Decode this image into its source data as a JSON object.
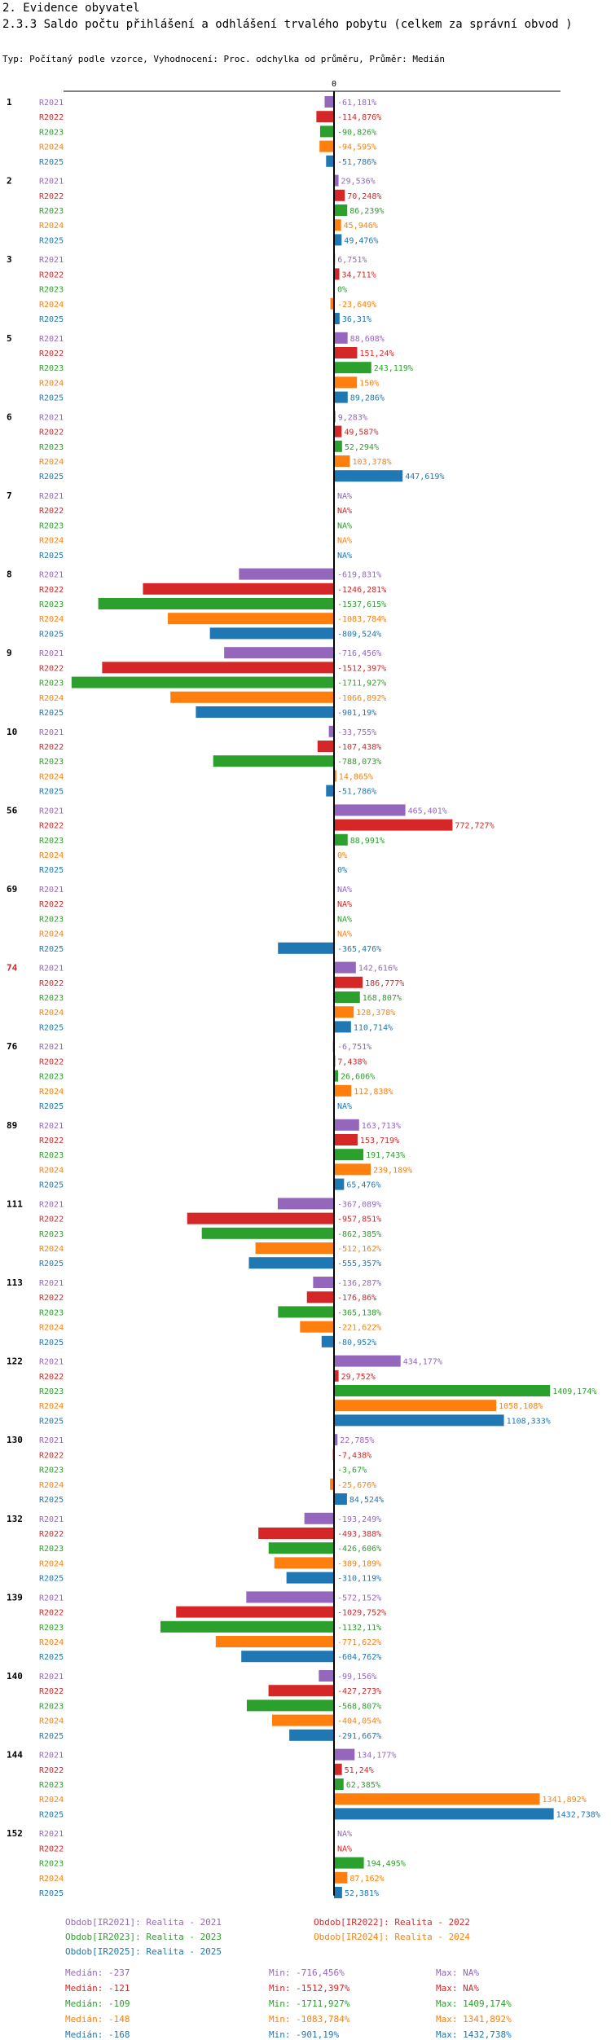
{
  "header": {
    "section": "2. Evidence obyvatel",
    "title": "2.3.3 Saldo počtu přihlášení a odhlášení trvalého pobytu (celkem za správní obvod )",
    "subtitle": "Typ: Počítaný podle vzorce, Vyhodnocení: Proc. odchylka od průměru, Průměr: Medián"
  },
  "colors": {
    "R2021": "#9467bd",
    "R2022": "#d62728",
    "R2023": "#2ca02c",
    "R2024": "#ff7f0e",
    "R2025": "#1f77b4"
  },
  "chart_data": {
    "type": "bar",
    "orientation": "horizontal",
    "axis_zero_label": "0",
    "series_names": [
      "R2021",
      "R2022",
      "R2023",
      "R2024",
      "R2025"
    ],
    "groups": [
      {
        "label": "1",
        "highlight": false,
        "values": [
          -61.181,
          -114.876,
          -90.826,
          -94.595,
          -51.786
        ],
        "labels": [
          "-61,181%",
          "-114,876%",
          "-90,826%",
          "-94,595%",
          "-51,786%"
        ]
      },
      {
        "label": "2",
        "highlight": false,
        "values": [
          29.536,
          70.248,
          86.239,
          45.946,
          49.476
        ],
        "labels": [
          "29,536%",
          "70,248%",
          "86,239%",
          "45,946%",
          "49,476%"
        ]
      },
      {
        "label": "3",
        "highlight": false,
        "values": [
          6.751,
          34.711,
          0,
          -23.649,
          36.31
        ],
        "labels": [
          "6,751%",
          "34,711%",
          "0%",
          "-23,649%",
          "36,31%"
        ]
      },
      {
        "label": "5",
        "highlight": false,
        "values": [
          88.608,
          151.24,
          243.119,
          150,
          89.286
        ],
        "labels": [
          "88,608%",
          "151,24%",
          "243,119%",
          "150%",
          "89,286%"
        ]
      },
      {
        "label": "6",
        "highlight": false,
        "values": [
          9.283,
          49.587,
          52.294,
          103.378,
          447.619
        ],
        "labels": [
          "9,283%",
          "49,587%",
          "52,294%",
          "103,378%",
          "447,619%"
        ]
      },
      {
        "label": "7",
        "highlight": false,
        "values": [
          null,
          null,
          null,
          null,
          null
        ],
        "labels": [
          "NA%",
          "NA%",
          "NA%",
          "NA%",
          "NA%"
        ]
      },
      {
        "label": "8",
        "highlight": false,
        "values": [
          -619.831,
          -1246.281,
          -1537.615,
          -1083.784,
          -809.524
        ],
        "labels": [
          "-619,831%",
          "-1246,281%",
          "-1537,615%",
          "-1083,784%",
          "-809,524%"
        ]
      },
      {
        "label": "9",
        "highlight": false,
        "values": [
          -716.456,
          -1512.397,
          -1711.927,
          -1066.892,
          -901.19
        ],
        "labels": [
          "-716,456%",
          "-1512,397%",
          "-1711,927%",
          "-1066,892%",
          "-901,19%"
        ]
      },
      {
        "label": "10",
        "highlight": false,
        "values": [
          -33.755,
          -107.438,
          -788.073,
          14.865,
          -51.786
        ],
        "labels": [
          "-33,755%",
          "-107,438%",
          "-788,073%",
          "14,865%",
          "-51,786%"
        ]
      },
      {
        "label": "56",
        "highlight": false,
        "values": [
          465.401,
          772.727,
          88.991,
          0,
          0
        ],
        "labels": [
          "465,401%",
          "772,727%",
          "88,991%",
          "0%",
          "0%"
        ]
      },
      {
        "label": "69",
        "highlight": false,
        "values": [
          null,
          null,
          null,
          null,
          -365.476
        ],
        "labels": [
          "NA%",
          "NA%",
          "NA%",
          "NA%",
          "-365,476%"
        ]
      },
      {
        "label": "74",
        "highlight": true,
        "values": [
          142.616,
          186.777,
          168.807,
          128.378,
          110.714
        ],
        "labels": [
          "142,616%",
          "186,777%",
          "168,807%",
          "128,378%",
          "110,714%"
        ]
      },
      {
        "label": "76",
        "highlight": false,
        "values": [
          -6.751,
          7.438,
          26.606,
          112.838,
          null
        ],
        "labels": [
          "-6,751%",
          "7,438%",
          "26,606%",
          "112,838%",
          "NA%"
        ]
      },
      {
        "label": "89",
        "highlight": false,
        "values": [
          163.713,
          153.719,
          191.743,
          239.189,
          65.476
        ],
        "labels": [
          "163,713%",
          "153,719%",
          "191,743%",
          "239,189%",
          "65,476%"
        ]
      },
      {
        "label": "111",
        "highlight": false,
        "values": [
          -367.089,
          -957.851,
          -862.385,
          -512.162,
          -555.357
        ],
        "labels": [
          "-367,089%",
          "-957,851%",
          "-862,385%",
          "-512,162%",
          "-555,357%"
        ]
      },
      {
        "label": "113",
        "highlight": false,
        "values": [
          -136.287,
          -176.86,
          -365.138,
          -221.622,
          -80.952
        ],
        "labels": [
          "-136,287%",
          "-176,86%",
          "-365,138%",
          "-221,622%",
          "-80,952%"
        ]
      },
      {
        "label": "122",
        "highlight": false,
        "values": [
          434.177,
          29.752,
          1409.174,
          1058.108,
          1108.333
        ],
        "labels": [
          "434,177%",
          "29,752%",
          "1409,174%",
          "1058,108%",
          "1108,333%"
        ]
      },
      {
        "label": "130",
        "highlight": false,
        "values": [
          22.785,
          -7.438,
          -3.67,
          -25.676,
          84.524
        ],
        "labels": [
          "22,785%",
          "-7,438%",
          "-3,67%",
          "-25,676%",
          "84,524%"
        ]
      },
      {
        "label": "132",
        "highlight": false,
        "values": [
          -193.249,
          -493.388,
          -426.606,
          -389.189,
          -310.119
        ],
        "labels": [
          "-193,249%",
          "-493,388%",
          "-426,606%",
          "-389,189%",
          "-310,119%"
        ]
      },
      {
        "label": "139",
        "highlight": false,
        "values": [
          -572.152,
          -1029.752,
          -1132.11,
          -771.622,
          -604.762
        ],
        "labels": [
          "-572,152%",
          "-1029,752%",
          "-1132,11%",
          "-771,622%",
          "-604,762%"
        ]
      },
      {
        "label": "140",
        "highlight": false,
        "values": [
          -99.156,
          -427.273,
          -568.807,
          -404.054,
          -291.667
        ],
        "labels": [
          "-99,156%",
          "-427,273%",
          "-568,807%",
          "-404,054%",
          "-291,667%"
        ]
      },
      {
        "label": "144",
        "highlight": false,
        "values": [
          134.177,
          51.24,
          62.385,
          1341.892,
          1432.738
        ],
        "labels": [
          "134,177%",
          "51,24%",
          "62,385%",
          "1341,892%",
          "1432,738%"
        ]
      },
      {
        "label": "152",
        "highlight": false,
        "values": [
          null,
          null,
          194.495,
          87.162,
          52.381
        ],
        "labels": [
          "NA%",
          "NA%",
          "194,495%",
          "87,162%",
          "52,381%"
        ]
      }
    ],
    "legend": [
      {
        "key": "R2021",
        "text": "Obdob[IR2021]: Realita - 2021"
      },
      {
        "key": "R2022",
        "text": "Obdob[IR2022]: Realita - 2022"
      },
      {
        "key": "R2023",
        "text": "Obdob[IR2023]: Realita - 2023"
      },
      {
        "key": "R2024",
        "text": "Obdob[IR2024]: Realita - 2024"
      },
      {
        "key": "R2025",
        "text": "Obdob[IR2025]: Realita - 2025"
      }
    ],
    "stats": [
      {
        "key": "R2021",
        "median": "Medián: -237",
        "min": "Min: -716,456%",
        "max": "Max: NA%"
      },
      {
        "key": "R2022",
        "median": "Medián: -121",
        "min": "Min: -1512,397%",
        "max": "Max: NA%"
      },
      {
        "key": "R2023",
        "median": "Medián: -109",
        "min": "Min: -1711,927%",
        "max": "Max: 1409,174%"
      },
      {
        "key": "R2024",
        "median": "Medián: -148",
        "min": "Min: -1083,784%",
        "max": "Max: 1341,892%"
      },
      {
        "key": "R2025",
        "median": "Medián: -168",
        "min": "Min: -901,19%",
        "max": "Max: 1432,738%"
      }
    ]
  }
}
